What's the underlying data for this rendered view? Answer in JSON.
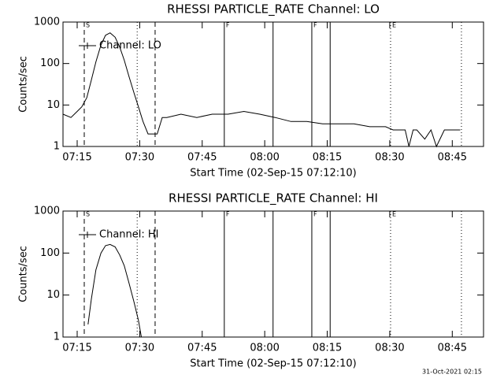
{
  "chart_data": [
    {
      "type": "line",
      "title": "RHESSI PARTICLE_RATE Channel: LO",
      "xlabel": "Start Time (02-Sep-15 07:12:10)",
      "ylabel": "Counts/sec",
      "ylog": true,
      "ylim": [
        1,
        1000
      ],
      "yticks": [
        1,
        10,
        100,
        1000
      ],
      "xlim": [
        431.6,
        532.5
      ],
      "xticks": [
        {
          "value": 435,
          "label": "07:15"
        },
        {
          "value": 450,
          "label": "07:30"
        },
        {
          "value": 465,
          "label": "07:45"
        },
        {
          "value": 480,
          "label": "08:00"
        },
        {
          "value": 495,
          "label": "08:15"
        },
        {
          "value": 510,
          "label": "08:30"
        },
        {
          "value": 525,
          "label": "08:45"
        }
      ],
      "markers": [
        {
          "x": 436.7,
          "style": "dashed",
          "label": "S"
        },
        {
          "x": 449.4,
          "style": "dotted"
        },
        {
          "x": 453.7,
          "style": "dashed"
        },
        {
          "x": 470.3,
          "style": "solid",
          "label": "F"
        },
        {
          "x": 482.0,
          "style": "solid"
        },
        {
          "x": 491.3,
          "style": "solid",
          "label": "F"
        },
        {
          "x": 495.7,
          "style": "solid"
        },
        {
          "x": 510.2,
          "style": "dotted",
          "label": "E"
        },
        {
          "x": 527.2,
          "style": "dotted"
        }
      ],
      "series": [
        {
          "name": "Channel: LO",
          "color": "#000000",
          "x": [
            431.6,
            433.5,
            435.0,
            436.1,
            437.3,
            438.4,
            439.5,
            440.7,
            441.8,
            442.9,
            444.1,
            445.2,
            446.3,
            447.4,
            448.6,
            449.7,
            450.8,
            452.0,
            453.1,
            454.2,
            455.4,
            456.5,
            459.9,
            463.7,
            467.4,
            471.2,
            475.0,
            478.8,
            482.5,
            486.3,
            490.1,
            493.9,
            497.6,
            501.4,
            505.2,
            509.0,
            510.8,
            513.7,
            514.6,
            515.6,
            516.5,
            518.4,
            519.9,
            521.2,
            523.1,
            525.0,
            526.9
          ],
          "values": [
            6,
            5,
            7,
            9,
            15,
            40,
            110,
            280,
            480,
            550,
            430,
            250,
            120,
            50,
            20,
            9,
            4,
            2,
            2,
            2,
            5,
            5,
            6,
            5,
            6,
            6,
            7,
            6,
            5,
            4,
            4,
            3.5,
            3.5,
            3.5,
            3,
            3,
            2.5,
            2.5,
            1,
            2.5,
            2.5,
            1.5,
            2.5,
            1,
            2.5,
            2.5,
            2.5
          ]
        }
      ]
    },
    {
      "type": "line",
      "title": "RHESSI PARTICLE_RATE Channel: HI",
      "xlabel": "Start Time (02-Sep-15 07:12:10)",
      "ylabel": "Counts/sec",
      "ylog": true,
      "ylim": [
        1,
        1000
      ],
      "yticks": [
        1,
        10,
        100,
        1000
      ],
      "xlim": [
        431.6,
        532.5
      ],
      "xticks": [
        {
          "value": 435,
          "label": "07:15"
        },
        {
          "value": 450,
          "label": "07:30"
        },
        {
          "value": 465,
          "label": "07:45"
        },
        {
          "value": 480,
          "label": "08:00"
        },
        {
          "value": 495,
          "label": "08:15"
        },
        {
          "value": 510,
          "label": "08:30"
        },
        {
          "value": 525,
          "label": "08:45"
        }
      ],
      "markers": [
        {
          "x": 436.7,
          "style": "dashed",
          "label": "S"
        },
        {
          "x": 449.4,
          "style": "dotted"
        },
        {
          "x": 453.7,
          "style": "dashed"
        },
        {
          "x": 470.3,
          "style": "solid",
          "label": "F"
        },
        {
          "x": 482.0,
          "style": "solid"
        },
        {
          "x": 491.3,
          "style": "solid",
          "label": "F"
        },
        {
          "x": 495.7,
          "style": "solid"
        },
        {
          "x": 510.2,
          "style": "dotted",
          "label": "E"
        },
        {
          "x": 527.2,
          "style": "dotted"
        }
      ],
      "series": [
        {
          "name": "Channel: HI",
          "color": "#000000",
          "x": [
            437.6,
            438.4,
            439.5,
            440.7,
            441.8,
            442.9,
            444.1,
            445.2,
            446.3,
            447.4,
            448.6,
            449.7,
            450.4
          ],
          "values": [
            2,
            8,
            40,
            100,
            150,
            160,
            140,
            90,
            50,
            20,
            7,
            2.5,
            1
          ]
        }
      ]
    }
  ],
  "footer": "31-Oct-2021 02:15"
}
